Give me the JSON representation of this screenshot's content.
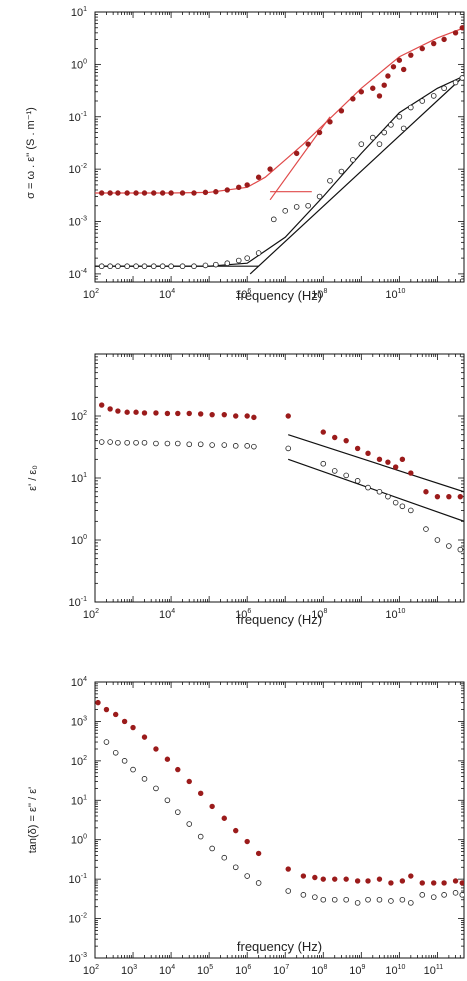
{
  "colors": {
    "filled": "#9b1b1b",
    "fit_red": "#e04a4a",
    "open": "#222222",
    "fit_black": "#111111"
  },
  "chart_data": [
    {
      "type": "scatter",
      "xscale": "log",
      "yscale": "log",
      "xlim": [
        100,
        500000000000.0
      ],
      "ylim": [
        7e-05,
        10
      ],
      "xlabel": "frequency (Hz)",
      "ylabel": "σ = ω . ε'' (S . m⁻¹)",
      "x_ticks": [
        {
          "base": "10",
          "exp": "2",
          "v": 100
        },
        {
          "base": "10",
          "exp": "4",
          "v": 10000.0
        },
        {
          "base": "10",
          "exp": "6",
          "v": 1000000.0
        },
        {
          "base": "10",
          "exp": "8",
          "v": 100000000.0
        },
        {
          "base": "10",
          "exp": "10",
          "v": 10000000000.0
        }
      ],
      "y_ticks": [
        {
          "base": "10",
          "exp": "-4",
          "v": 0.0001
        },
        {
          "base": "10",
          "exp": "-3",
          "v": 0.001
        },
        {
          "base": "10",
          "exp": "-2",
          "v": 0.01
        },
        {
          "base": "10",
          "exp": "-1",
          "v": 0.1
        },
        {
          "base": "10",
          "exp": "0",
          "v": 1
        },
        {
          "base": "10",
          "exp": "1",
          "v": 10
        }
      ],
      "series": [
        {
          "style": "filled",
          "x": [
            150,
            250,
            400,
            700,
            1200,
            2000,
            3500,
            6000,
            10000.0,
            20000.0,
            40000.0,
            80000.0,
            150000.0,
            300000.0,
            600000.0,
            1000000.0,
            2000000.0,
            4000000.0,
            20000000.0,
            40000000.0,
            80000000.0,
            150000000.0,
            300000000.0,
            600000000.0,
            1000000000.0,
            2000000000.0,
            3000000000.0,
            4000000000.0,
            5000000000.0,
            7000000000.0,
            10000000000.0,
            13000000000.0,
            20000000000.0,
            40000000000.0,
            80000000000.0,
            150000000000.0,
            300000000000.0,
            450000000000.0
          ],
          "y": [
            0.0035,
            0.0035,
            0.0035,
            0.0035,
            0.0035,
            0.0035,
            0.0035,
            0.0035,
            0.0035,
            0.0035,
            0.0035,
            0.0036,
            0.0037,
            0.004,
            0.0045,
            0.005,
            0.007,
            0.01,
            0.02,
            0.03,
            0.05,
            0.08,
            0.13,
            0.22,
            0.3,
            0.35,
            0.25,
            0.4,
            0.6,
            0.9,
            1.2,
            0.8,
            1.5,
            2,
            2.5,
            3,
            4,
            5
          ]
        },
        {
          "style": "open",
          "x": [
            150,
            250,
            400,
            700,
            1200,
            2000,
            3500,
            6000,
            10000.0,
            20000.0,
            40000.0,
            80000.0,
            150000.0,
            300000.0,
            600000.0,
            1000000.0,
            2000000.0,
            5000000.0,
            10000000.0,
            20000000.0,
            40000000.0,
            80000000.0,
            150000000.0,
            300000000.0,
            600000000.0,
            1000000000.0,
            2000000000.0,
            3000000000.0,
            4000000000.0,
            6000000000.0,
            10000000000.0,
            13000000000.0,
            20000000000.0,
            40000000000.0,
            80000000000.0,
            150000000000.0,
            300000000000.0,
            450000000000.0
          ],
          "y": [
            0.00014,
            0.00014,
            0.00014,
            0.00014,
            0.00014,
            0.00014,
            0.00014,
            0.00014,
            0.00014,
            0.00014,
            0.00014,
            0.000145,
            0.00015,
            0.00016,
            0.00018,
            0.0002,
            0.00025,
            0.0011,
            0.0016,
            0.0019,
            0.002,
            0.003,
            0.006,
            0.009,
            0.015,
            0.03,
            0.04,
            0.03,
            0.05,
            0.07,
            0.1,
            0.06,
            0.15,
            0.2,
            0.25,
            0.35,
            0.45,
            0.55
          ]
        }
      ],
      "fits": [
        {
          "style": "fit_red",
          "x": [
            100,
            10000.0,
            100000.0,
            1000000.0,
            3000000.0,
            10000000.0,
            30000000.0,
            100000000.0,
            1000000000.0,
            10000000000.0,
            100000000000.0,
            500000000000.0
          ],
          "y": [
            0.0035,
            0.0035,
            0.0036,
            0.0045,
            0.007,
            0.015,
            0.03,
            0.07,
            0.35,
            1.4,
            3.2,
            5
          ]
        },
        {
          "style": "fit_red",
          "x": [
            4000000.0,
            150000000.0
          ],
          "y": [
            0.0026,
            0.1
          ]
        },
        {
          "style": "fit_red",
          "x": [
            4000000.0,
            50000000.0
          ],
          "y": [
            0.0037,
            0.0037
          ]
        },
        {
          "style": "fit_black",
          "x": [
            100,
            100000.0,
            1000000.0,
            10000000.0,
            100000000.0,
            1000000000.0,
            10000000000.0,
            100000000000.0,
            500000000000.0
          ],
          "y": [
            0.00014,
            0.00014,
            0.00016,
            0.0005,
            0.003,
            0.02,
            0.12,
            0.35,
            0.6
          ]
        },
        {
          "style": "fit_black",
          "x": [
            1200000.0,
            500000000000.0
          ],
          "y": [
            0.0001,
            0.6
          ]
        },
        {
          "style": "fit_black",
          "x": [
            100,
            2000000.0
          ],
          "y": [
            0.00014,
            0.00014
          ]
        }
      ]
    },
    {
      "type": "scatter",
      "xscale": "log",
      "yscale": "log",
      "xlim": [
        100,
        500000000000.0
      ],
      "ylim": [
        0.1,
        1000
      ],
      "xlabel": "frequency (Hz)",
      "ylabel": "ε' / ε₀",
      "x_ticks": [
        {
          "base": "10",
          "exp": "2",
          "v": 100
        },
        {
          "base": "10",
          "exp": "4",
          "v": 10000.0
        },
        {
          "base": "10",
          "exp": "6",
          "v": 1000000.0
        },
        {
          "base": "10",
          "exp": "8",
          "v": 100000000.0
        },
        {
          "base": "10",
          "exp": "10",
          "v": 10000000000.0
        }
      ],
      "y_ticks": [
        {
          "base": "10",
          "exp": "-1",
          "v": 0.1
        },
        {
          "base": "10",
          "exp": "0",
          "v": 1
        },
        {
          "base": "10",
          "exp": "1",
          "v": 10
        },
        {
          "base": "10",
          "exp": "2",
          "v": 100
        }
      ],
      "series": [
        {
          "style": "filled",
          "x": [
            150,
            250,
            400,
            700,
            1200,
            2000,
            4000,
            8000,
            15000.0,
            30000.0,
            60000.0,
            120000.0,
            250000.0,
            500000.0,
            1000000.0,
            1500000.0,
            12000000.0,
            100000000.0,
            200000000.0,
            400000000.0,
            800000000.0,
            1500000000.0,
            3000000000.0,
            5000000000.0,
            8000000000.0,
            12000000000.0,
            20000000000.0,
            50000000000.0,
            100000000000.0,
            200000000000.0,
            400000000000.0
          ],
          "y": [
            150,
            130,
            120,
            115,
            115,
            112,
            112,
            110,
            110,
            110,
            108,
            105,
            105,
            100,
            100,
            95,
            100,
            55,
            45,
            40,
            30,
            25,
            20,
            18,
            15,
            20,
            12,
            6,
            5,
            5,
            5
          ]
        },
        {
          "style": "open",
          "x": [
            150,
            250,
            400,
            700,
            1200,
            2000,
            4000,
            8000,
            15000.0,
            30000.0,
            60000.0,
            120000.0,
            250000.0,
            500000.0,
            1000000.0,
            1500000.0,
            12000000.0,
            100000000.0,
            200000000.0,
            400000000.0,
            800000000.0,
            1500000000.0,
            3000000000.0,
            5000000000.0,
            8000000000.0,
            12000000000.0,
            20000000000.0,
            50000000000.0,
            100000000000.0,
            200000000000.0,
            400000000000.0
          ],
          "y": [
            38,
            38,
            37,
            37,
            37,
            37,
            36,
            36,
            36,
            35,
            35,
            34,
            34,
            33,
            33,
            32,
            30,
            17,
            13,
            11,
            9,
            7,
            6,
            5,
            4,
            3.5,
            3,
            1.5,
            1,
            0.8,
            0.7
          ]
        }
      ],
      "fits": [
        {
          "style": "fit_black",
          "x": [
            12000000.0,
            500000000000.0
          ],
          "y": [
            50,
            6
          ]
        },
        {
          "style": "fit_black",
          "x": [
            12000000.0,
            500000000000.0
          ],
          "y": [
            20,
            2
          ]
        }
      ]
    },
    {
      "type": "scatter",
      "xscale": "log",
      "yscale": "log",
      "xlim": [
        100,
        500000000000.0
      ],
      "ylim": [
        0.001,
        10000
      ],
      "xlabel": "frequency (Hz)",
      "ylabel": "tan(δ) = ε'' / ε'",
      "x_ticks": [
        {
          "base": "10",
          "exp": "2",
          "v": 100
        },
        {
          "base": "10",
          "exp": "3",
          "v": 1000
        },
        {
          "base": "10",
          "exp": "4",
          "v": 10000.0
        },
        {
          "base": "10",
          "exp": "5",
          "v": 100000.0
        },
        {
          "base": "10",
          "exp": "6",
          "v": 1000000.0
        },
        {
          "base": "10",
          "exp": "7",
          "v": 10000000.0
        },
        {
          "base": "10",
          "exp": "8",
          "v": 100000000.0
        },
        {
          "base": "10",
          "exp": "9",
          "v": 1000000000.0
        },
        {
          "base": "10",
          "exp": "10",
          "v": 10000000000.0
        },
        {
          "base": "10",
          "exp": "11",
          "v": 100000000000.0
        }
      ],
      "y_ticks": [
        {
          "base": "10",
          "exp": "-3",
          "v": 0.001
        },
        {
          "base": "10",
          "exp": "-2",
          "v": 0.01
        },
        {
          "base": "10",
          "exp": "-1",
          "v": 0.1
        },
        {
          "base": "10",
          "exp": "0",
          "v": 1
        },
        {
          "base": "10",
          "exp": "1",
          "v": 10
        },
        {
          "base": "10",
          "exp": "2",
          "v": 100
        },
        {
          "base": "10",
          "exp": "3",
          "v": 1000
        },
        {
          "base": "10",
          "exp": "4",
          "v": 10000
        }
      ],
      "series": [
        {
          "style": "filled",
          "x": [
            120,
            200,
            350,
            600,
            1000,
            2000,
            4000,
            8000,
            15000.0,
            30000.0,
            60000.0,
            120000.0,
            250000.0,
            500000.0,
            1000000.0,
            2000000.0,
            12000000.0,
            30000000.0,
            60000000.0,
            100000000.0,
            200000000.0,
            400000000.0,
            800000000.0,
            1500000000.0,
            3000000000.0,
            6000000000.0,
            12000000000.0,
            20000000000.0,
            40000000000.0,
            80000000000.0,
            150000000000.0,
            300000000000.0,
            450000000000.0
          ],
          "y": [
            3000,
            2000,
            1500,
            1000,
            700,
            400,
            200,
            110,
            60,
            30,
            15,
            7,
            3.5,
            1.7,
            0.9,
            0.45,
            0.18,
            0.12,
            0.11,
            0.1,
            0.1,
            0.1,
            0.09,
            0.09,
            0.1,
            0.08,
            0.09,
            0.12,
            0.08,
            0.08,
            0.08,
            0.09,
            0.08
          ]
        },
        {
          "style": "open",
          "x": [
            200,
            350,
            600,
            1000,
            2000,
            4000,
            8000,
            15000.0,
            30000.0,
            60000.0,
            120000.0,
            250000.0,
            500000.0,
            1000000.0,
            2000000.0,
            12000000.0,
            30000000.0,
            60000000.0,
            100000000.0,
            200000000.0,
            400000000.0,
            800000000.0,
            1500000000.0,
            3000000000.0,
            6000000000.0,
            12000000000.0,
            20000000000.0,
            40000000000.0,
            80000000000.0,
            150000000000.0,
            300000000000.0,
            450000000000.0
          ],
          "y": [
            300,
            160,
            100,
            60,
            35,
            20,
            10,
            5,
            2.5,
            1.2,
            0.6,
            0.35,
            0.2,
            0.12,
            0.08,
            0.05,
            0.04,
            0.035,
            0.03,
            0.03,
            0.03,
            0.025,
            0.03,
            0.03,
            0.028,
            0.03,
            0.025,
            0.04,
            0.035,
            0.04,
            0.045,
            0.04
          ]
        }
      ],
      "fits": []
    }
  ]
}
